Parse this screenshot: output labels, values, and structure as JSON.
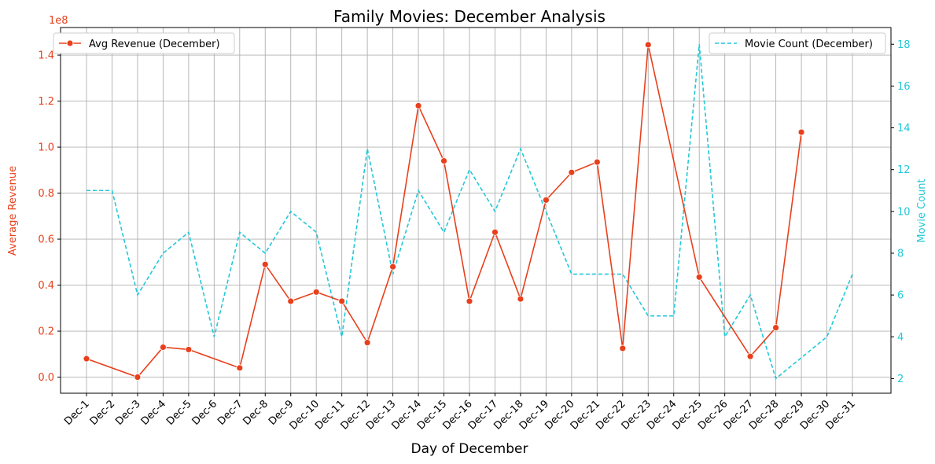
{
  "chart_data": {
    "type": "line",
    "title": "Family Movies: December Analysis",
    "xlabel": "Day of December",
    "ylabel_left": "Average Revenue",
    "ylabel_right": "Movie Count",
    "left_axis_offset": "1e8",
    "categories": [
      "Dec-1",
      "Dec-2",
      "Dec-3",
      "Dec-4",
      "Dec-5",
      "Dec-6",
      "Dec-7",
      "Dec-8",
      "Dec-9",
      "Dec-10",
      "Dec-11",
      "Dec-12",
      "Dec-13",
      "Dec-14",
      "Dec-15",
      "Dec-16",
      "Dec-17",
      "Dec-18",
      "Dec-19",
      "Dec-20",
      "Dec-21",
      "Dec-22",
      "Dec-23",
      "Dec-24",
      "Dec-25",
      "Dec-26",
      "Dec-27",
      "Dec-28",
      "Dec-29",
      "Dec-30",
      "Dec-31"
    ],
    "ylim_left": [
      -0.07,
      1.52
    ],
    "ylim_right": [
      1.3,
      18.8
    ],
    "yticks_left": [
      0.0,
      0.2,
      0.4,
      0.6,
      0.8,
      1.0,
      1.2,
      1.4
    ],
    "yticks_left_labels": [
      "0.0",
      "0.2",
      "0.4",
      "0.6",
      "0.8",
      "1.0",
      "1.2",
      "1.4"
    ],
    "yticks_right": [
      2,
      4,
      6,
      8,
      10,
      12,
      14,
      16,
      18
    ],
    "yticks_right_labels": [
      "2",
      "4",
      "6",
      "8",
      "10",
      "12",
      "14",
      "16",
      "18"
    ],
    "grid": true,
    "series": [
      {
        "name": "Avg Revenue (December)",
        "axis": "left",
        "color": "#e8401c",
        "style": "solid-with-markers",
        "legend_position": "upper-left",
        "values": [
          0.08,
          null,
          0.0,
          0.13,
          0.12,
          null,
          0.04,
          0.49,
          0.33,
          0.37,
          0.33,
          0.15,
          0.48,
          1.18,
          0.94,
          0.33,
          0.63,
          0.34,
          0.77,
          0.89,
          0.935,
          0.125,
          1.445,
          null,
          0.435,
          null,
          0.09,
          0.215,
          1.065,
          null,
          null
        ]
      },
      {
        "name": "Movie Count (December)",
        "axis": "right",
        "color": "#22c8d8",
        "style": "dashed",
        "legend_position": "upper-right",
        "values": [
          11,
          11,
          6,
          8,
          9,
          4,
          9,
          8,
          10,
          9,
          4,
          13,
          7,
          11,
          9,
          12,
          10,
          13,
          10,
          7,
          7,
          7,
          5,
          5,
          18,
          4,
          6,
          2,
          3,
          4,
          7
        ]
      }
    ]
  }
}
